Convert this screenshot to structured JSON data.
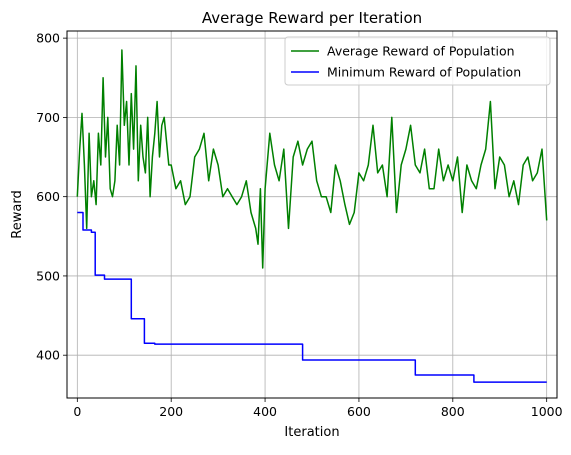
{
  "chart_data": {
    "type": "line",
    "title": "Average Reward per Iteration",
    "xlabel": "Iteration",
    "ylabel": "Reward",
    "xlim": [
      -22,
      1022
    ],
    "ylim": [
      346,
      809
    ],
    "x_ticks": [
      0,
      200,
      400,
      600,
      800,
      1000
    ],
    "y_ticks": [
      400,
      500,
      600,
      700,
      800
    ],
    "grid": true,
    "legend_position": "top-right",
    "series": [
      {
        "name": "Average Reward of Population",
        "color": "#008000",
        "x": [
          0,
          5,
          10,
          15,
          20,
          25,
          30,
          35,
          40,
          45,
          50,
          55,
          60,
          65,
          70,
          75,
          80,
          85,
          90,
          95,
          100,
          105,
          110,
          115,
          120,
          125,
          130,
          135,
          140,
          145,
          150,
          155,
          160,
          165,
          170,
          175,
          180,
          185,
          190,
          195,
          200,
          210,
          220,
          230,
          240,
          250,
          260,
          270,
          280,
          290,
          300,
          310,
          320,
          330,
          340,
          350,
          360,
          370,
          380,
          385,
          390,
          395,
          400,
          410,
          420,
          430,
          440,
          450,
          460,
          470,
          480,
          490,
          500,
          510,
          520,
          530,
          540,
          550,
          560,
          570,
          580,
          590,
          600,
          610,
          620,
          630,
          640,
          650,
          660,
          670,
          680,
          690,
          700,
          710,
          720,
          730,
          740,
          750,
          760,
          770,
          780,
          790,
          800,
          810,
          820,
          830,
          840,
          850,
          860,
          870,
          880,
          890,
          900,
          910,
          920,
          930,
          940,
          950,
          960,
          970,
          980,
          990,
          1000
        ],
        "values": [
          600,
          660,
          705,
          640,
          560,
          680,
          600,
          620,
          590,
          680,
          640,
          750,
          650,
          700,
          610,
          600,
          620,
          690,
          640,
          785,
          690,
          720,
          640,
          730,
          660,
          765,
          620,
          690,
          650,
          630,
          700,
          600,
          650,
          680,
          720,
          650,
          690,
          700,
          670,
          640,
          640,
          610,
          620,
          590,
          600,
          650,
          660,
          680,
          620,
          660,
          640,
          600,
          610,
          600,
          590,
          600,
          620,
          580,
          560,
          540,
          610,
          510,
          610,
          680,
          640,
          620,
          660,
          560,
          650,
          670,
          640,
          660,
          670,
          620,
          600,
          600,
          580,
          640,
          620,
          590,
          565,
          580,
          630,
          620,
          640,
          690,
          630,
          640,
          600,
          700,
          580,
          640,
          660,
          690,
          640,
          630,
          660,
          610,
          610,
          660,
          620,
          640,
          620,
          650,
          580,
          640,
          620,
          610,
          640,
          660,
          720,
          610,
          650,
          640,
          600,
          620,
          590,
          640,
          650,
          620,
          630,
          660,
          570
        ]
      },
      {
        "name": "Minimum Reward of Population",
        "color": "#0000ff",
        "step": true,
        "x": [
          0,
          12,
          30,
          38,
          40,
          58,
          115,
          143,
          165,
          180,
          480,
          510,
          720,
          845,
          1000
        ],
        "values": [
          580,
          558,
          555,
          501,
          501,
          496,
          446,
          415,
          414,
          414,
          394,
          394,
          375,
          366,
          366
        ]
      }
    ]
  }
}
